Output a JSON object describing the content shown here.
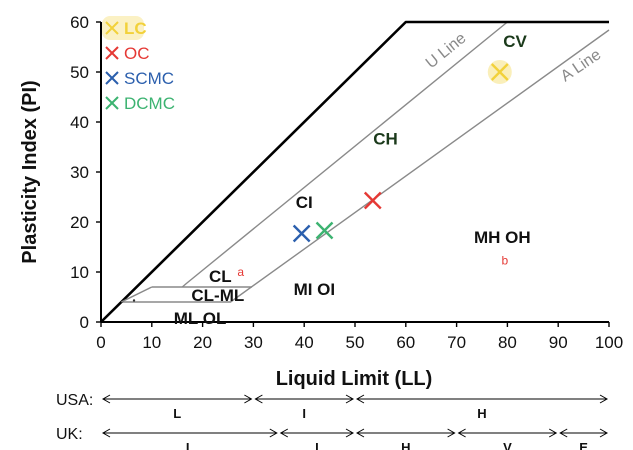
{
  "chart_data": {
    "type": "scatter",
    "xlabel": "Liquid Limit (LL)",
    "ylabel": "Plasticity Index (PI)",
    "xlim": [
      0,
      100
    ],
    "ylim": [
      0,
      60
    ],
    "x_ticks": [
      "0",
      "10",
      "20",
      "30",
      "40",
      "50",
      "60",
      "70",
      "80",
      "90",
      "100"
    ],
    "y_ticks": [
      "0",
      "10",
      "20",
      "30",
      "40",
      "50",
      "60"
    ],
    "grid": false,
    "legend_position": "top-left",
    "series": [
      {
        "name": "LC",
        "color": "#f2d13a",
        "points": [
          {
            "x": 78.5,
            "y": 50
          }
        ]
      },
      {
        "name": "OC",
        "color": "#e53935",
        "points": [
          {
            "x": 53.5,
            "y": 24.3
          }
        ]
      },
      {
        "name": "SCMC",
        "color": "#2b5fad",
        "points": [
          {
            "x": 39.5,
            "y": 17.7
          }
        ]
      },
      {
        "name": "DCMC",
        "color": "#3cb371",
        "points": [
          {
            "x": 44,
            "y": 18.3
          }
        ]
      }
    ],
    "reference_lines": [
      {
        "name": "U Line",
        "color": "#8a8a8a",
        "points": [
          [
            16,
            7
          ],
          [
            16.8,
            7.7
          ],
          [
            80,
            60
          ]
        ]
      },
      {
        "name": "A Line",
        "color": "#8a8a8a",
        "points": [
          [
            4,
            4
          ],
          [
            25.5,
            4
          ],
          [
            100,
            58.4
          ]
        ]
      },
      {
        "name": "",
        "color": "#000000",
        "points": [
          [
            0,
            0
          ],
          [
            60,
            60
          ],
          [
            100,
            60
          ]
        ]
      },
      {
        "name": "",
        "color": "#888888",
        "points": [
          [
            10,
            7
          ],
          [
            29.7,
            7
          ]
        ]
      },
      {
        "name": "",
        "color": "#888888",
        "points": [
          [
            10,
            7
          ],
          [
            4,
            4
          ]
        ]
      }
    ],
    "zone_labels": [
      {
        "text": "CV",
        "x": 81.5,
        "y": 55,
        "style": "zone-dark"
      },
      {
        "text": "CH",
        "x": 56,
        "y": 35.5,
        "style": "zone-dark"
      },
      {
        "text": "CI",
        "x": 40,
        "y": 22.8,
        "style": "zone"
      },
      {
        "text": "MH OH",
        "x": 79,
        "y": 15.8,
        "style": "zone"
      },
      {
        "text": "MI OI",
        "x": 42,
        "y": 5.4,
        "style": "zone"
      },
      {
        "text": "CL",
        "x": 23.5,
        "y": 8,
        "style": "zone"
      },
      {
        "text": "CL-ML",
        "x": 23,
        "y": 4.2,
        "style": "zone"
      },
      {
        "text": "ML OL",
        "x": 19.5,
        "y": -0.4,
        "style": "zone"
      }
    ],
    "superscripts": [
      {
        "text": "a",
        "x": 27.5,
        "y": 9.2
      },
      {
        "text": "b",
        "x": 79.5,
        "y": 11.5
      }
    ],
    "line_labels": [
      {
        "text": "U Line",
        "x": 68.5,
        "y": 53.5,
        "angle": -39
      },
      {
        "text": "A Line",
        "x": 95,
        "y": 50.5,
        "angle": -34
      }
    ],
    "classification_rows": [
      {
        "label": "USA:",
        "segments": [
          {
            "text": "L",
            "from": 0,
            "to": 30
          },
          {
            "text": "I",
            "from": 30,
            "to": 50
          },
          {
            "text": "H",
            "from": 50,
            "to": 100
          }
        ]
      },
      {
        "label": "UK:",
        "segments": [
          {
            "text": "L",
            "from": 0,
            "to": 35
          },
          {
            "text": "I",
            "from": 35,
            "to": 50
          },
          {
            "text": "H",
            "from": 50,
            "to": 70
          },
          {
            "text": "V",
            "from": 70,
            "to": 90
          },
          {
            "text": "E",
            "from": 90,
            "to": 100
          }
        ]
      }
    ]
  }
}
